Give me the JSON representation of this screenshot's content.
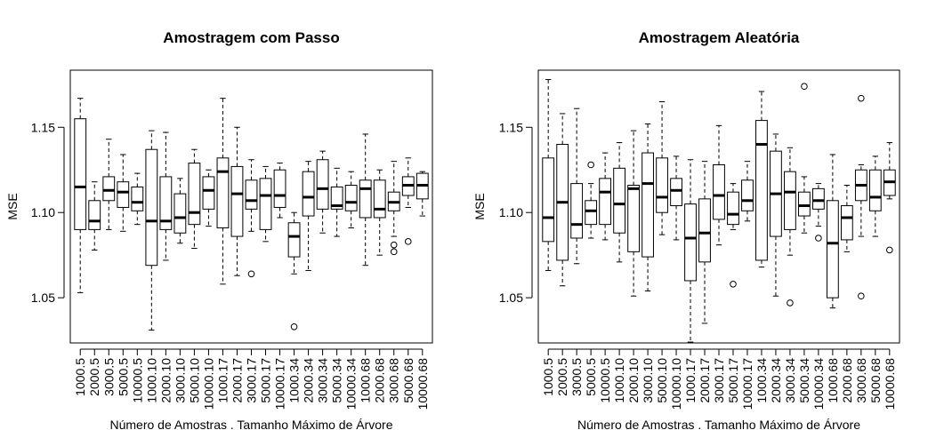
{
  "chart_data": [
    {
      "type": "boxplot",
      "title": "Amostragem com Passo",
      "xlabel": "Número de Amostras . Tamanho Máximo de Árvore",
      "ylabel": "MSE",
      "ylim": [
        1.0235,
        1.1835
      ],
      "yticks": [
        "1.05",
        "1.10",
        "1.15"
      ],
      "categories": [
        "1000.5",
        "2000.5",
        "3000.5",
        "5000.5",
        "10000.5",
        "1000.10",
        "2000.10",
        "3000.10",
        "5000.10",
        "10000.10",
        "1000.17",
        "2000.17",
        "3000.17",
        "5000.17",
        "10000.17",
        "1000.34",
        "2000.34",
        "3000.34",
        "5000.34",
        "10000.34",
        "1000.68",
        "2000.68",
        "3000.68",
        "5000.68",
        "10000.68"
      ],
      "boxes": [
        {
          "min": 1.053,
          "q1": 1.09,
          "median": 1.115,
          "q3": 1.155,
          "max": 1.167,
          "outliers": []
        },
        {
          "min": 1.078,
          "q1": 1.09,
          "median": 1.095,
          "q3": 1.107,
          "max": 1.118,
          "outliers": []
        },
        {
          "min": 1.09,
          "q1": 1.107,
          "median": 1.113,
          "q3": 1.121,
          "max": 1.143,
          "outliers": []
        },
        {
          "min": 1.089,
          "q1": 1.103,
          "median": 1.112,
          "q3": 1.118,
          "max": 1.134,
          "outliers": []
        },
        {
          "min": 1.093,
          "q1": 1.101,
          "median": 1.106,
          "q3": 1.115,
          "max": 1.123,
          "outliers": []
        },
        {
          "min": 1.031,
          "q1": 1.069,
          "median": 1.095,
          "q3": 1.137,
          "max": 1.148,
          "outliers": []
        },
        {
          "min": 1.072,
          "q1": 1.09,
          "median": 1.095,
          "q3": 1.121,
          "max": 1.147,
          "outliers": []
        },
        {
          "min": 1.082,
          "q1": 1.088,
          "median": 1.097,
          "q3": 1.111,
          "max": 1.12,
          "outliers": []
        },
        {
          "min": 1.079,
          "q1": 1.093,
          "median": 1.1,
          "q3": 1.129,
          "max": 1.137,
          "outliers": []
        },
        {
          "min": 1.092,
          "q1": 1.102,
          "median": 1.113,
          "q3": 1.121,
          "max": 1.125,
          "outliers": []
        },
        {
          "min": 1.058,
          "q1": 1.091,
          "median": 1.124,
          "q3": 1.132,
          "max": 1.167,
          "outliers": []
        },
        {
          "min": 1.063,
          "q1": 1.086,
          "median": 1.111,
          "q3": 1.127,
          "max": 1.15,
          "outliers": []
        },
        {
          "min": 1.089,
          "q1": 1.102,
          "median": 1.107,
          "q3": 1.119,
          "max": 1.131,
          "outliers": [
            1.064
          ]
        },
        {
          "min": 1.083,
          "q1": 1.09,
          "median": 1.11,
          "q3": 1.12,
          "max": 1.127,
          "outliers": []
        },
        {
          "min": 1.097,
          "q1": 1.103,
          "median": 1.11,
          "q3": 1.125,
          "max": 1.129,
          "outliers": []
        },
        {
          "min": 1.064,
          "q1": 1.074,
          "median": 1.086,
          "q3": 1.094,
          "max": 1.1,
          "outliers": [
            1.033
          ]
        },
        {
          "min": 1.066,
          "q1": 1.098,
          "median": 1.109,
          "q3": 1.124,
          "max": 1.13,
          "outliers": []
        },
        {
          "min": 1.088,
          "q1": 1.102,
          "median": 1.114,
          "q3": 1.131,
          "max": 1.136,
          "outliers": []
        },
        {
          "min": 1.086,
          "q1": 1.102,
          "median": 1.104,
          "q3": 1.115,
          "max": 1.126,
          "outliers": []
        },
        {
          "min": 1.091,
          "q1": 1.101,
          "median": 1.106,
          "q3": 1.116,
          "max": 1.124,
          "outliers": []
        },
        {
          "min": 1.069,
          "q1": 1.097,
          "median": 1.114,
          "q3": 1.119,
          "max": 1.146,
          "outliers": []
        },
        {
          "min": 1.075,
          "q1": 1.097,
          "median": 1.102,
          "q3": 1.119,
          "max": 1.125,
          "outliers": []
        },
        {
          "min": 1.086,
          "q1": 1.101,
          "median": 1.106,
          "q3": 1.112,
          "max": 1.13,
          "outliers": [
            1.081,
            1.077
          ]
        },
        {
          "min": 1.103,
          "q1": 1.11,
          "median": 1.116,
          "q3": 1.121,
          "max": 1.132,
          "outliers": [
            1.083
          ]
        },
        {
          "min": 1.098,
          "q1": 1.108,
          "median": 1.116,
          "q3": 1.123,
          "max": 1.124,
          "outliers": []
        }
      ]
    },
    {
      "type": "boxplot",
      "title": "Amostragem Aleatória",
      "xlabel": "Número de Amostras . Tamanho Máximo de Árvore",
      "ylabel": "MSE",
      "ylim": [
        1.0235,
        1.1835
      ],
      "yticks": [
        "1.05",
        "1.10",
        "1.15"
      ],
      "categories": [
        "1000.5",
        "2000.5",
        "3000.5",
        "5000.5",
        "10000.5",
        "1000.10",
        "2000.10",
        "3000.10",
        "5000.10",
        "10000.10",
        "1000.17",
        "2000.17",
        "3000.17",
        "5000.17",
        "10000.17",
        "1000.34",
        "2000.34",
        "3000.34",
        "5000.34",
        "10000.34",
        "1000.68",
        "2000.68",
        "3000.68",
        "5000.68",
        "10000.68"
      ],
      "boxes": [
        {
          "min": 1.066,
          "q1": 1.083,
          "median": 1.097,
          "q3": 1.132,
          "max": 1.178,
          "outliers": []
        },
        {
          "min": 1.057,
          "q1": 1.072,
          "median": 1.106,
          "q3": 1.14,
          "max": 1.158,
          "outliers": []
        },
        {
          "min": 1.07,
          "q1": 1.085,
          "median": 1.093,
          "q3": 1.117,
          "max": 1.161,
          "outliers": []
        },
        {
          "min": 1.085,
          "q1": 1.093,
          "median": 1.101,
          "q3": 1.107,
          "max": 1.117,
          "outliers": [
            1.128
          ]
        },
        {
          "min": 1.084,
          "q1": 1.093,
          "median": 1.112,
          "q3": 1.12,
          "max": 1.135,
          "outliers": []
        },
        {
          "min": 1.071,
          "q1": 1.088,
          "median": 1.105,
          "q3": 1.126,
          "max": 1.141,
          "outliers": []
        },
        {
          "min": 1.051,
          "q1": 1.077,
          "median": 1.114,
          "q3": 1.116,
          "max": 1.148,
          "outliers": []
        },
        {
          "min": 1.054,
          "q1": 1.074,
          "median": 1.117,
          "q3": 1.135,
          "max": 1.152,
          "outliers": []
        },
        {
          "min": 1.087,
          "q1": 1.1,
          "median": 1.109,
          "q3": 1.132,
          "max": 1.165,
          "outliers": []
        },
        {
          "min": 1.084,
          "q1": 1.104,
          "median": 1.113,
          "q3": 1.12,
          "max": 1.133,
          "outliers": []
        },
        {
          "min": 1.024,
          "q1": 1.06,
          "median": 1.085,
          "q3": 1.105,
          "max": 1.131,
          "outliers": []
        },
        {
          "min": 1.035,
          "q1": 1.071,
          "median": 1.088,
          "q3": 1.108,
          "max": 1.13,
          "outliers": []
        },
        {
          "min": 1.081,
          "q1": 1.096,
          "median": 1.11,
          "q3": 1.128,
          "max": 1.151,
          "outliers": []
        },
        {
          "min": 1.09,
          "q1": 1.093,
          "median": 1.099,
          "q3": 1.112,
          "max": 1.117,
          "outliers": [
            1.058
          ]
        },
        {
          "min": 1.095,
          "q1": 1.101,
          "median": 1.107,
          "q3": 1.119,
          "max": 1.13,
          "outliers": []
        },
        {
          "min": 1.068,
          "q1": 1.072,
          "median": 1.14,
          "q3": 1.154,
          "max": 1.171,
          "outliers": []
        },
        {
          "min": 1.051,
          "q1": 1.086,
          "median": 1.111,
          "q3": 1.136,
          "max": 1.146,
          "outliers": []
        },
        {
          "min": 1.075,
          "q1": 1.09,
          "median": 1.112,
          "q3": 1.124,
          "max": 1.138,
          "outliers": [
            1.047
          ]
        },
        {
          "min": 1.088,
          "q1": 1.098,
          "median": 1.104,
          "q3": 1.112,
          "max": 1.121,
          "outliers": [
            1.174
          ]
        },
        {
          "min": 1.092,
          "q1": 1.102,
          "median": 1.107,
          "q3": 1.114,
          "max": 1.117,
          "outliers": [
            1.085
          ]
        },
        {
          "min": 1.044,
          "q1": 1.05,
          "median": 1.082,
          "q3": 1.107,
          "max": 1.134,
          "outliers": []
        },
        {
          "min": 1.077,
          "q1": 1.084,
          "median": 1.097,
          "q3": 1.104,
          "max": 1.116,
          "outliers": []
        },
        {
          "min": 1.086,
          "q1": 1.107,
          "median": 1.116,
          "q3": 1.125,
          "max": 1.128,
          "outliers": [
            1.167,
            1.051
          ]
        },
        {
          "min": 1.086,
          "q1": 1.101,
          "median": 1.109,
          "q3": 1.125,
          "max": 1.133,
          "outliers": []
        },
        {
          "min": 1.108,
          "q1": 1.11,
          "median": 1.118,
          "q3": 1.125,
          "max": 1.141,
          "outliers": [
            1.078
          ]
        }
      ]
    }
  ]
}
